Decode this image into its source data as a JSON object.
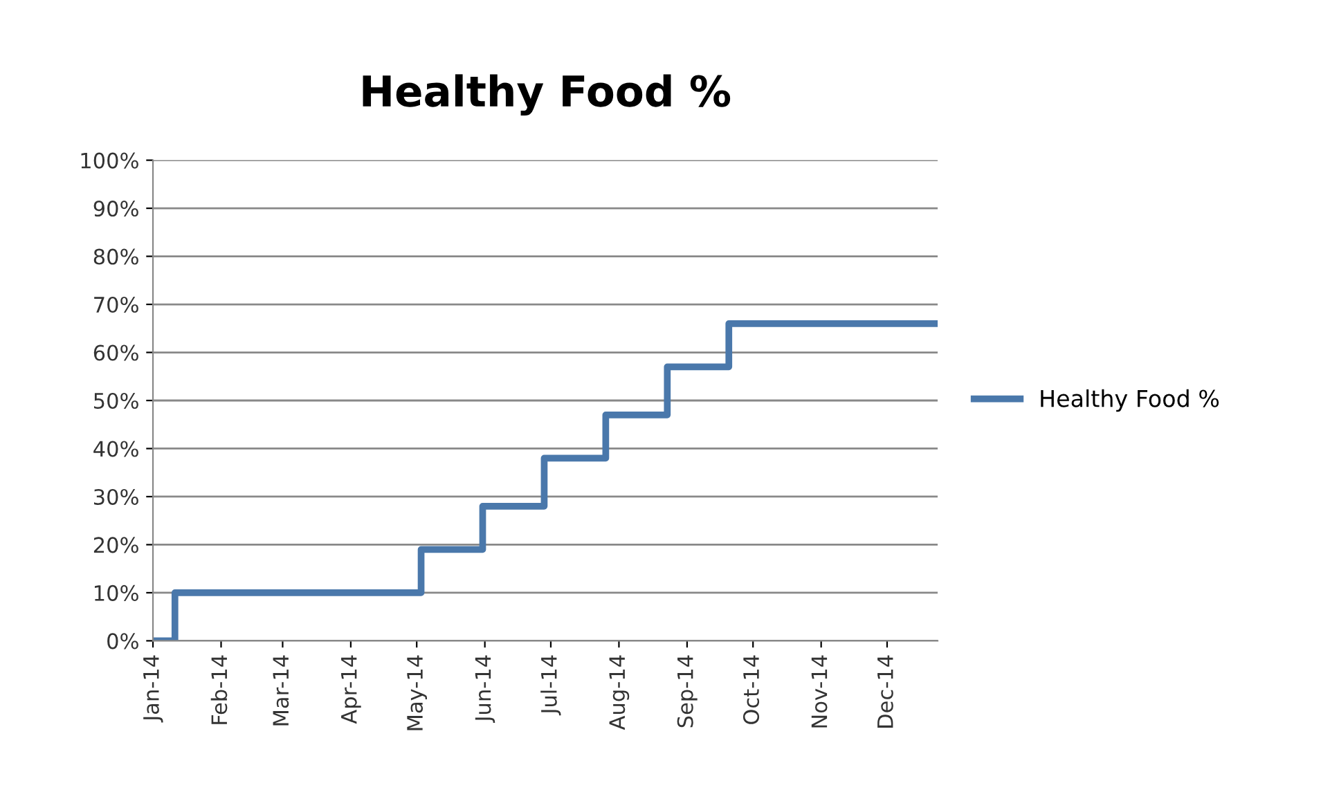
{
  "chart_data": {
    "type": "step",
    "title": "Healthy Food %",
    "x": [
      "2014-01-01",
      "2014-01-11",
      "2014-05-03",
      "2014-05-31",
      "2014-06-28",
      "2014-07-26",
      "2014-08-23",
      "2014-09-20",
      "2014-12-24"
    ],
    "series": [
      {
        "name": "Healthy Food %",
        "color": "#4a78ab",
        "values": [
          0,
          10,
          19,
          28,
          38,
          47,
          57,
          66,
          66
        ]
      }
    ],
    "xlim": [
      "2014-01-01",
      "2014-12-24"
    ],
    "xticks": [
      {
        "value": "2014-01-01",
        "label": "Jan-14"
      },
      {
        "value": "2014-02-01",
        "label": "Feb-14"
      },
      {
        "value": "2014-03-01",
        "label": "Mar-14"
      },
      {
        "value": "2014-04-01",
        "label": "Apr-14"
      },
      {
        "value": "2014-05-01",
        "label": "May-14"
      },
      {
        "value": "2014-06-01",
        "label": "Jun-14"
      },
      {
        "value": "2014-07-01",
        "label": "Jul-14"
      },
      {
        "value": "2014-08-01",
        "label": "Aug-14"
      },
      {
        "value": "2014-09-01",
        "label": "Sep-14"
      },
      {
        "value": "2014-10-01",
        "label": "Oct-14"
      },
      {
        "value": "2014-11-01",
        "label": "Nov-14"
      },
      {
        "value": "2014-12-01",
        "label": "Dec-14"
      }
    ],
    "ylim": [
      0,
      100
    ],
    "yticks": [
      {
        "value": 0,
        "label": "0%"
      },
      {
        "value": 10,
        "label": "10%"
      },
      {
        "value": 20,
        "label": "20%"
      },
      {
        "value": 30,
        "label": "30%"
      },
      {
        "value": 40,
        "label": "40%"
      },
      {
        "value": 50,
        "label": "50%"
      },
      {
        "value": 60,
        "label": "60%"
      },
      {
        "value": 70,
        "label": "70%"
      },
      {
        "value": 80,
        "label": "80%"
      },
      {
        "value": 90,
        "label": "90%"
      },
      {
        "value": 100,
        "label": "100%"
      }
    ],
    "grid": "y",
    "legend": "right",
    "line_style": "solid",
    "marker": "none"
  }
}
